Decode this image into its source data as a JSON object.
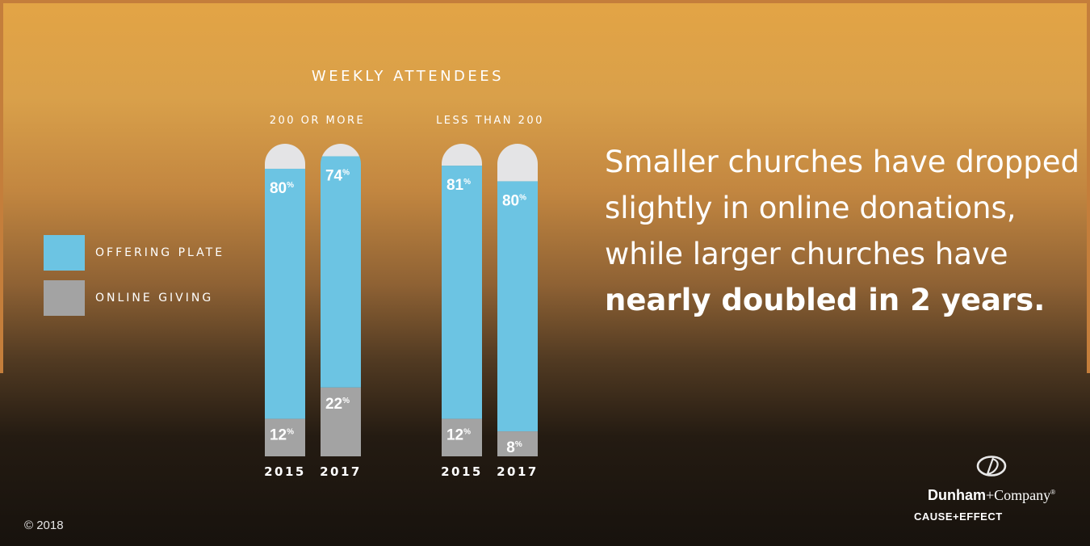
{
  "chart_data": {
    "type": "bar",
    "title": "WEEKLY ATTENDEES",
    "groups": [
      {
        "label": "200 OR MORE",
        "bars": [
          {
            "year": "2015",
            "offering_plate": 80,
            "online_giving": 12
          },
          {
            "year": "2017",
            "offering_plate": 74,
            "online_giving": 22
          }
        ]
      },
      {
        "label": "LESS THAN 200",
        "bars": [
          {
            "year": "2015",
            "offering_plate": 81,
            "online_giving": 12
          },
          {
            "year": "2017",
            "offering_plate": 80,
            "online_giving": 8
          }
        ]
      }
    ],
    "series": [
      {
        "name": "OFFERING PLATE",
        "key": "offering_plate",
        "color": "#6cc4e3"
      },
      {
        "name": "ONLINE GIVING",
        "key": "online_giving",
        "color": "#a3a3a3"
      }
    ],
    "remainder_color": "#e4e4e6",
    "value_suffix": "%",
    "ylim": [
      0,
      100
    ],
    "legend_position": "left"
  },
  "headline": {
    "line_regular": "Smaller churches have dropped slightly in online donations, while larger churches have",
    "line_bold": "nearly doubled in 2 years."
  },
  "logo": {
    "brand_bold": "Dunham",
    "brand_regular": "+Company",
    "brand_mark": "®",
    "tagline": "CAUSE+EFFECT",
    "icon": "dunham-d-emblem-icon"
  },
  "copyright": "© 2018"
}
